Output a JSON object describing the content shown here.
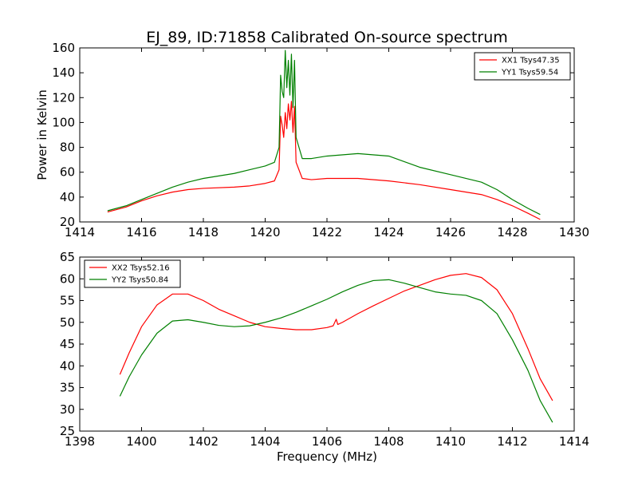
{
  "figure": {
    "title": "EJ_89, ID:71858 Calibrated On-source spectrum",
    "xlabel": "Frequency (MHz)"
  },
  "chart_data": [
    {
      "type": "line",
      "ylabel": "Power in Kelvin",
      "xlim": [
        1414,
        1430
      ],
      "ylim": [
        20,
        160
      ],
      "xticks": [
        1414,
        1416,
        1418,
        1420,
        1422,
        1424,
        1426,
        1428,
        1430
      ],
      "yticks": [
        20,
        40,
        60,
        80,
        100,
        120,
        140,
        160
      ],
      "legend_position": "top-right",
      "grid": false,
      "series": [
        {
          "name": "XX1 Tsys47.35",
          "color": "#ff0000",
          "points": [
            [
              1414.9,
              28
            ],
            [
              1415.5,
              32
            ],
            [
              1416,
              37
            ],
            [
              1416.5,
              41
            ],
            [
              1417,
              44
            ],
            [
              1417.5,
              46
            ],
            [
              1418,
              47
            ],
            [
              1419,
              48
            ],
            [
              1419.5,
              49
            ],
            [
              1420,
              51
            ],
            [
              1420.3,
              53
            ],
            [
              1420.45,
              62
            ],
            [
              1420.5,
              105
            ],
            [
              1420.55,
              98
            ],
            [
              1420.6,
              88
            ],
            [
              1420.65,
              108
            ],
            [
              1420.7,
              95
            ],
            [
              1420.75,
              115
            ],
            [
              1420.8,
              102
            ],
            [
              1420.85,
              117
            ],
            [
              1420.9,
              92
            ],
            [
              1420.95,
              113
            ],
            [
              1421,
              68
            ],
            [
              1421.2,
              55
            ],
            [
              1421.5,
              54
            ],
            [
              1422,
              55
            ],
            [
              1423,
              55
            ],
            [
              1424,
              53
            ],
            [
              1425,
              50
            ],
            [
              1426,
              46
            ],
            [
              1427,
              42
            ],
            [
              1427.5,
              38
            ],
            [
              1428,
              33
            ],
            [
              1428.5,
              27
            ],
            [
              1428.9,
              22
            ]
          ]
        },
        {
          "name": "YY1 Tsys59.54",
          "color": "#008000",
          "points": [
            [
              1414.9,
              29
            ],
            [
              1415.5,
              33
            ],
            [
              1416,
              38
            ],
            [
              1416.5,
              43
            ],
            [
              1417,
              48
            ],
            [
              1417.5,
              52
            ],
            [
              1418,
              55
            ],
            [
              1419,
              59
            ],
            [
              1419.5,
              62
            ],
            [
              1420,
              65
            ],
            [
              1420.3,
              68
            ],
            [
              1420.45,
              80
            ],
            [
              1420.5,
              138
            ],
            [
              1420.55,
              125
            ],
            [
              1420.6,
              120
            ],
            [
              1420.65,
              158
            ],
            [
              1420.7,
              128
            ],
            [
              1420.75,
              150
            ],
            [
              1420.8,
              122
            ],
            [
              1420.85,
              155
            ],
            [
              1420.9,
              112
            ],
            [
              1420.95,
              150
            ],
            [
              1421,
              88
            ],
            [
              1421.2,
              71
            ],
            [
              1421.5,
              71
            ],
            [
              1422,
              73
            ],
            [
              1423,
              75
            ],
            [
              1424,
              73
            ],
            [
              1425,
              64
            ],
            [
              1426,
              58
            ],
            [
              1427,
              52
            ],
            [
              1427.5,
              46
            ],
            [
              1428,
              38
            ],
            [
              1428.5,
              31
            ],
            [
              1428.9,
              26
            ]
          ]
        }
      ]
    },
    {
      "type": "line",
      "ylabel": "",
      "xlim": [
        1398,
        1414
      ],
      "ylim": [
        25,
        65
      ],
      "xticks": [
        1398,
        1400,
        1402,
        1404,
        1406,
        1408,
        1410,
        1412,
        1414
      ],
      "yticks": [
        25,
        30,
        35,
        40,
        45,
        50,
        55,
        60,
        65
      ],
      "legend_position": "top-left",
      "grid": false,
      "series": [
        {
          "name": "XX2 Tsys52.16",
          "color": "#ff0000",
          "points": [
            [
              1399.3,
              38
            ],
            [
              1399.6,
              43
            ],
            [
              1400,
              49
            ],
            [
              1400.5,
              54
            ],
            [
              1401,
              56.5
            ],
            [
              1401.5,
              56.5
            ],
            [
              1402,
              55
            ],
            [
              1402.5,
              53
            ],
            [
              1403,
              51.5
            ],
            [
              1403.5,
              50
            ],
            [
              1404,
              49
            ],
            [
              1404.5,
              48.6
            ],
            [
              1405,
              48.3
            ],
            [
              1405.5,
              48.3
            ],
            [
              1406,
              48.8
            ],
            [
              1406.2,
              49.2
            ],
            [
              1406.3,
              50.7
            ],
            [
              1406.35,
              49.5
            ],
            [
              1406.5,
              50
            ],
            [
              1407,
              52
            ],
            [
              1407.5,
              53.8
            ],
            [
              1408,
              55.5
            ],
            [
              1408.5,
              57.2
            ],
            [
              1409,
              58.5
            ],
            [
              1409.5,
              59.8
            ],
            [
              1410,
              60.8
            ],
            [
              1410.5,
              61.2
            ],
            [
              1411,
              60.3
            ],
            [
              1411.5,
              57.5
            ],
            [
              1412,
              52
            ],
            [
              1412.5,
              44
            ],
            [
              1412.9,
              37
            ],
            [
              1413.3,
              32
            ]
          ]
        },
        {
          "name": "YY2 Tsys50.84",
          "color": "#008000",
          "points": [
            [
              1399.3,
              33
            ],
            [
              1399.6,
              37.5
            ],
            [
              1400,
              42.5
            ],
            [
              1400.5,
              47.5
            ],
            [
              1401,
              50.3
            ],
            [
              1401.5,
              50.6
            ],
            [
              1402,
              50
            ],
            [
              1402.5,
              49.3
            ],
            [
              1403,
              49
            ],
            [
              1403.5,
              49.2
            ],
            [
              1404,
              50
            ],
            [
              1404.5,
              51
            ],
            [
              1405,
              52.3
            ],
            [
              1405.5,
              53.8
            ],
            [
              1406,
              55.3
            ],
            [
              1406.5,
              57
            ],
            [
              1407,
              58.5
            ],
            [
              1407.5,
              59.6
            ],
            [
              1408,
              59.8
            ],
            [
              1408.5,
              59
            ],
            [
              1409,
              58
            ],
            [
              1409.5,
              57
            ],
            [
              1410,
              56.5
            ],
            [
              1410.5,
              56.2
            ],
            [
              1411,
              55
            ],
            [
              1411.5,
              52
            ],
            [
              1412,
              46
            ],
            [
              1412.5,
              39
            ],
            [
              1412.9,
              32
            ],
            [
              1413.3,
              27
            ]
          ]
        }
      ]
    }
  ]
}
